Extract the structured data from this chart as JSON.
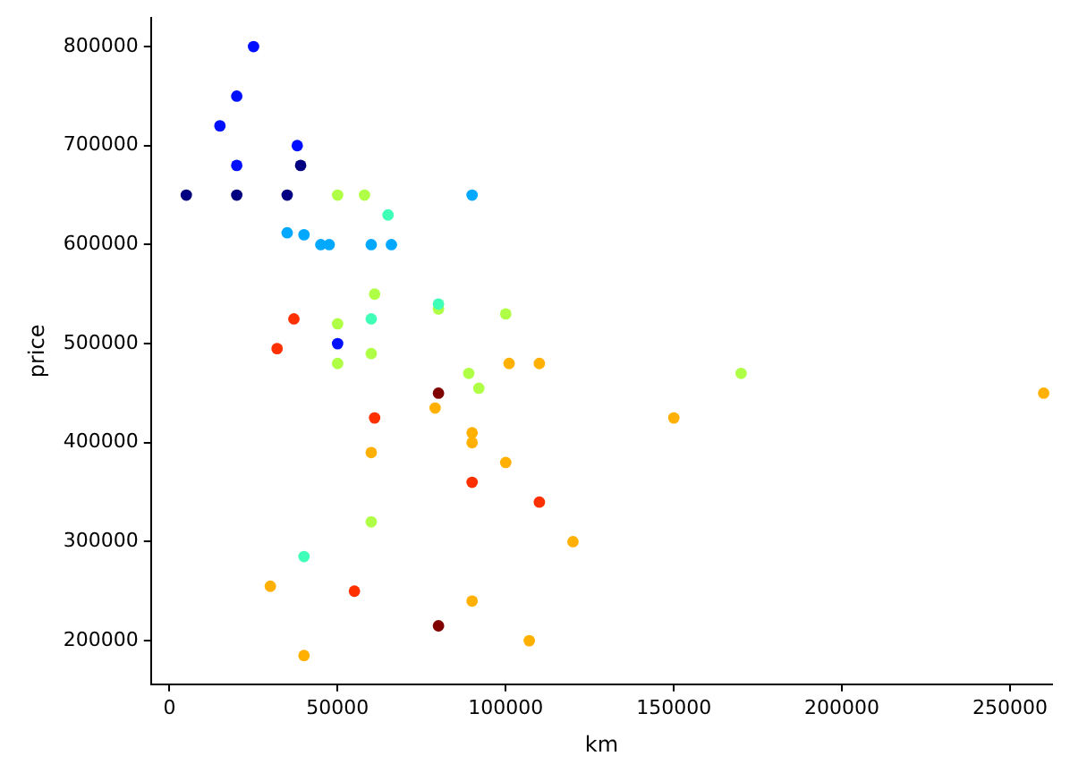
{
  "chart_data": {
    "type": "scatter",
    "xlabel": "km",
    "ylabel": "price",
    "x": [
      25000,
      20000,
      15000,
      38000,
      20000,
      50000,
      5000,
      20000,
      35000,
      39000,
      35000,
      40000,
      45000,
      47500,
      60000,
      66000,
      90000,
      50000,
      58000,
      61000,
      80000,
      100000,
      50000,
      60000,
      50000,
      89000,
      92000,
      170000,
      60000,
      65000,
      60000,
      80000,
      40000,
      32000,
      37000,
      61000,
      90000,
      110000,
      55000,
      101000,
      110000,
      79000,
      90000,
      90000,
      60000,
      100000,
      120000,
      150000,
      260000,
      30000,
      90000,
      107000,
      40000,
      80000,
      80000
    ],
    "values": [
      800000,
      750000,
      720000,
      700000,
      680000,
      500000,
      650000,
      650000,
      650000,
      680000,
      612000,
      610000,
      600000,
      600000,
      600000,
      600000,
      650000,
      650000,
      650000,
      550000,
      535000,
      530000,
      520000,
      490000,
      480000,
      470000,
      455000,
      470000,
      320000,
      630000,
      525000,
      540000,
      285000,
      495000,
      525000,
      425000,
      360000,
      340000,
      250000,
      480000,
      480000,
      435000,
      410000,
      400000,
      390000,
      380000,
      300000,
      425000,
      450000,
      255000,
      240000,
      200000,
      185000,
      450000,
      215000
    ],
    "colors": [
      "#0010ff",
      "#0010ff",
      "#0010ff",
      "#0010ff",
      "#0010ff",
      "#0010ff",
      "#000080",
      "#000080",
      "#000080",
      "#000080",
      "#00a8ff",
      "#00a8ff",
      "#00a8ff",
      "#00a8ff",
      "#00a8ff",
      "#00a8ff",
      "#00a8ff",
      "#b0ff47",
      "#b0ff47",
      "#b0ff47",
      "#b0ff47",
      "#b0ff47",
      "#b0ff47",
      "#b0ff47",
      "#b0ff47",
      "#b0ff47",
      "#b0ff47",
      "#b0ff47",
      "#b0ff47",
      "#40ffb7",
      "#40ffb7",
      "#40ffb7",
      "#40ffb7",
      "#ff3000",
      "#ff3000",
      "#ff3000",
      "#ff3000",
      "#ff3000",
      "#ff3000",
      "#ffb000",
      "#ffb000",
      "#ffb000",
      "#ffb000",
      "#ffb000",
      "#ffb000",
      "#ffb000",
      "#ffb000",
      "#ffb000",
      "#ffb000",
      "#ffb000",
      "#ffb000",
      "#ffb000",
      "#ffb000",
      "#800000",
      "#800000"
    ],
    "xlim": [
      -5500,
      262500
    ],
    "xticks": [
      0,
      50000,
      100000,
      150000,
      200000,
      250000
    ],
    "ylim": [
      156000,
      829000
    ],
    "yticks": [
      200000,
      300000,
      400000,
      500000,
      600000,
      700000,
      800000
    ],
    "grid": false,
    "legend": false,
    "marker": "circle"
  }
}
